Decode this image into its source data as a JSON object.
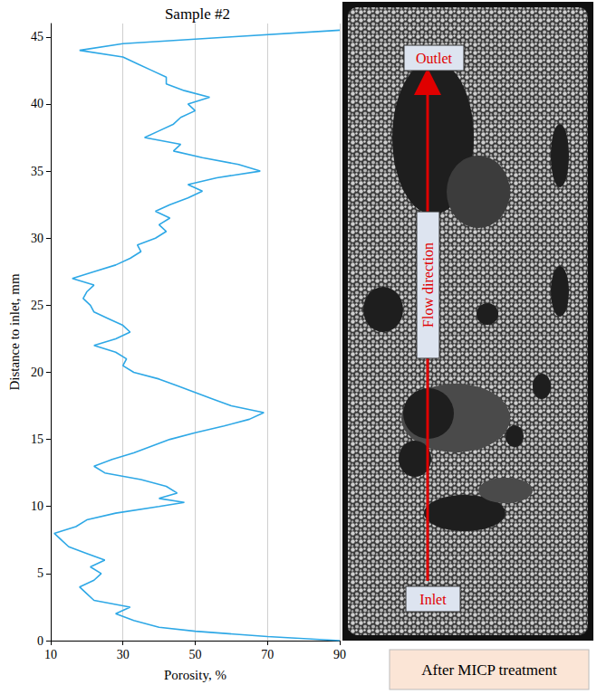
{
  "chart_data": {
    "type": "line",
    "title": "Sample #2",
    "x_label": "Porosity, %",
    "y_label": "Distance to inlet, mm",
    "color": "#2ea8e6",
    "grid": true,
    "xlim": [
      10,
      90
    ],
    "xticks": [
      10,
      30,
      50,
      70,
      90
    ],
    "ylim": [
      0,
      46
    ],
    "yticks": [
      0,
      5,
      10,
      15,
      20,
      25,
      30,
      35,
      40,
      45
    ],
    "x": [
      90,
      70,
      50,
      40,
      33,
      28,
      32,
      22,
      20,
      18,
      22,
      24,
      21,
      25,
      20,
      15,
      13,
      11,
      17,
      20,
      28,
      40,
      47,
      40,
      45,
      42,
      35,
      25,
      22,
      27,
      33,
      38,
      43,
      50,
      58,
      65,
      69,
      60,
      55,
      50,
      45,
      40,
      33,
      30,
      31,
      28,
      22,
      28,
      32,
      30,
      26,
      22,
      21,
      19,
      20,
      22,
      16,
      22,
      28,
      32,
      35,
      34,
      39,
      42,
      40,
      43,
      39,
      43,
      48,
      52,
      48,
      56,
      68,
      62,
      52,
      44,
      46,
      36,
      40,
      44,
      46,
      50,
      48,
      54,
      47,
      42,
      42,
      38,
      34,
      30,
      18,
      30,
      60,
      90
    ],
    "values": [
      0,
      0.3,
      0.7,
      1.0,
      1.5,
      2.0,
      2.5,
      3.0,
      3.5,
      4.0,
      4.5,
      5.0,
      5.5,
      6.0,
      6.5,
      7.0,
      7.5,
      8.0,
      8.5,
      9.0,
      9.5,
      10.0,
      10.3,
      10.6,
      11.0,
      11.5,
      12.0,
      12.5,
      13.0,
      13.5,
      14.0,
      14.5,
      15.0,
      15.5,
      16.0,
      16.5,
      17.0,
      17.5,
      18.0,
      18.5,
      19.0,
      19.5,
      20.0,
      20.5,
      21.0,
      21.5,
      22.0,
      22.5,
      23.0,
      23.5,
      24.0,
      24.5,
      25.0,
      25.5,
      26.0,
      26.5,
      27.0,
      27.5,
      28.0,
      28.5,
      29.0,
      29.5,
      30.0,
      30.5,
      31.0,
      31.5,
      32.0,
      32.5,
      33.0,
      33.5,
      34.0,
      34.5,
      35.0,
      35.5,
      36.0,
      36.5,
      37.0,
      37.5,
      38.0,
      38.5,
      39.0,
      39.5,
      40.0,
      40.5,
      41.0,
      41.5,
      42.0,
      42.5,
      43.0,
      43.5,
      44.0,
      44.5,
      45.0,
      45.5
    ],
    "annotations": {
      "outlet": "Outlet",
      "flow": "Flow direction",
      "inlet": "Inlet",
      "caption": "After MICP treatment"
    }
  }
}
